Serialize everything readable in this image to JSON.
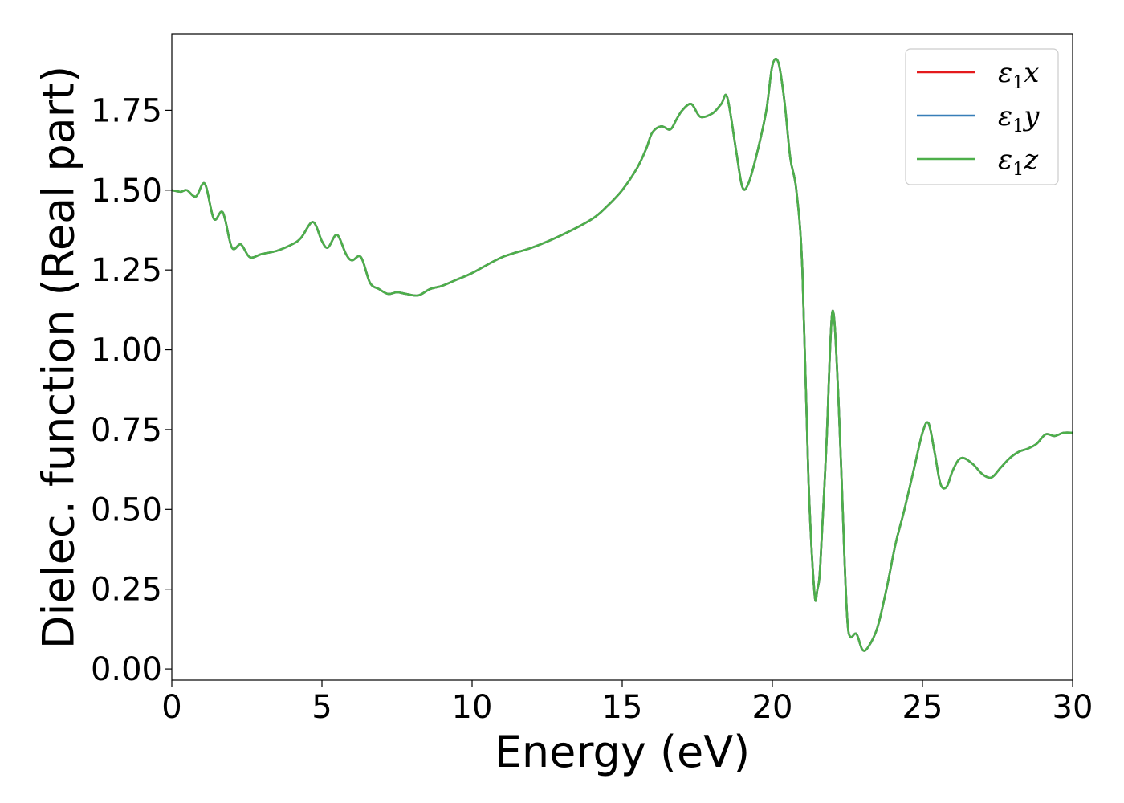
{
  "chart_data": {
    "type": "line",
    "xlabel": "Energy (eV)",
    "ylabel": "Dielec. function (Real part)",
    "xlim": [
      0,
      30
    ],
    "ylim": [
      -0.035,
      1.99
    ],
    "xticks": [
      0,
      5,
      10,
      15,
      20,
      25,
      30
    ],
    "xtick_labels": [
      "0",
      "5",
      "10",
      "15",
      "20",
      "25",
      "30"
    ],
    "yticks": [
      0.0,
      0.25,
      0.5,
      0.75,
      1.0,
      1.25,
      1.5,
      1.75
    ],
    "ytick_labels": [
      "0.00",
      "0.25",
      "0.50",
      "0.75",
      "1.00",
      "1.25",
      "1.50",
      "1.75"
    ],
    "grid": false,
    "legend_position": "top-right",
    "x": [
      0,
      0.3,
      0.5,
      0.8,
      1.1,
      1.4,
      1.7,
      2.0,
      2.3,
      2.6,
      3.0,
      3.5,
      4.0,
      4.3,
      4.7,
      5.0,
      5.2,
      5.5,
      5.8,
      6.0,
      6.3,
      6.6,
      6.9,
      7.2,
      7.5,
      7.8,
      8.2,
      8.6,
      9.0,
      9.5,
      10.0,
      11.0,
      12.0,
      13.0,
      14.0,
      14.5,
      15.0,
      15.5,
      15.8,
      16.0,
      16.3,
      16.6,
      16.8,
      17.0,
      17.3,
      17.6,
      18.0,
      18.3,
      18.5,
      18.8,
      19.0,
      19.2,
      19.5,
      19.8,
      20.0,
      20.2,
      20.4,
      20.6,
      20.8,
      21.0,
      21.2,
      21.4,
      21.5,
      21.6,
      21.8,
      22.0,
      22.2,
      22.4,
      22.5,
      22.6,
      22.8,
      23.0,
      23.2,
      23.5,
      23.8,
      24.1,
      24.4,
      24.7,
      25.0,
      25.2,
      25.4,
      25.6,
      25.8,
      26.0,
      26.2,
      26.4,
      26.7,
      27.0,
      27.3,
      27.6,
      27.9,
      28.2,
      28.5,
      28.8,
      29.1,
      29.4,
      29.7,
      30.0
    ],
    "series": [
      {
        "name": "ε₁x",
        "color": "#e41a1c",
        "values": [
          1.5,
          1.495,
          1.5,
          1.48,
          1.52,
          1.41,
          1.43,
          1.32,
          1.33,
          1.29,
          1.3,
          1.31,
          1.33,
          1.35,
          1.4,
          1.34,
          1.32,
          1.36,
          1.3,
          1.28,
          1.29,
          1.21,
          1.19,
          1.175,
          1.18,
          1.175,
          1.17,
          1.19,
          1.2,
          1.22,
          1.24,
          1.29,
          1.32,
          1.36,
          1.41,
          1.45,
          1.5,
          1.57,
          1.63,
          1.68,
          1.7,
          1.69,
          1.72,
          1.75,
          1.77,
          1.73,
          1.74,
          1.77,
          1.79,
          1.62,
          1.51,
          1.52,
          1.62,
          1.75,
          1.89,
          1.9,
          1.78,
          1.6,
          1.5,
          1.25,
          0.6,
          0.24,
          0.25,
          0.33,
          0.7,
          1.12,
          0.85,
          0.35,
          0.15,
          0.1,
          0.11,
          0.06,
          0.07,
          0.13,
          0.25,
          0.39,
          0.5,
          0.62,
          0.74,
          0.77,
          0.68,
          0.58,
          0.57,
          0.62,
          0.655,
          0.66,
          0.64,
          0.61,
          0.6,
          0.63,
          0.66,
          0.68,
          0.69,
          0.705,
          0.735,
          0.73,
          0.74,
          0.74
        ]
      },
      {
        "name": "ε₁y",
        "color": "#377eb8",
        "values": [
          1.5,
          1.495,
          1.5,
          1.48,
          1.52,
          1.41,
          1.43,
          1.32,
          1.33,
          1.29,
          1.3,
          1.31,
          1.33,
          1.35,
          1.4,
          1.34,
          1.32,
          1.36,
          1.3,
          1.28,
          1.29,
          1.21,
          1.19,
          1.175,
          1.18,
          1.175,
          1.17,
          1.19,
          1.2,
          1.22,
          1.24,
          1.29,
          1.32,
          1.36,
          1.41,
          1.45,
          1.5,
          1.57,
          1.63,
          1.68,
          1.7,
          1.69,
          1.72,
          1.75,
          1.77,
          1.73,
          1.74,
          1.77,
          1.79,
          1.62,
          1.51,
          1.52,
          1.62,
          1.75,
          1.89,
          1.9,
          1.78,
          1.6,
          1.5,
          1.25,
          0.6,
          0.24,
          0.25,
          0.33,
          0.7,
          1.12,
          0.85,
          0.35,
          0.15,
          0.1,
          0.11,
          0.06,
          0.07,
          0.13,
          0.25,
          0.39,
          0.5,
          0.62,
          0.74,
          0.77,
          0.68,
          0.58,
          0.57,
          0.62,
          0.655,
          0.66,
          0.64,
          0.61,
          0.6,
          0.63,
          0.66,
          0.68,
          0.69,
          0.705,
          0.735,
          0.73,
          0.74,
          0.74
        ]
      },
      {
        "name": "ε₁z",
        "color": "#4daf4a",
        "values": [
          1.5,
          1.495,
          1.5,
          1.48,
          1.52,
          1.41,
          1.43,
          1.32,
          1.33,
          1.29,
          1.3,
          1.31,
          1.33,
          1.35,
          1.4,
          1.34,
          1.32,
          1.36,
          1.3,
          1.28,
          1.29,
          1.21,
          1.19,
          1.175,
          1.18,
          1.175,
          1.17,
          1.19,
          1.2,
          1.22,
          1.24,
          1.29,
          1.32,
          1.36,
          1.41,
          1.45,
          1.5,
          1.57,
          1.63,
          1.68,
          1.7,
          1.69,
          1.72,
          1.75,
          1.77,
          1.73,
          1.74,
          1.77,
          1.79,
          1.62,
          1.51,
          1.52,
          1.62,
          1.75,
          1.89,
          1.9,
          1.78,
          1.6,
          1.5,
          1.25,
          0.6,
          0.24,
          0.25,
          0.33,
          0.7,
          1.12,
          0.85,
          0.35,
          0.15,
          0.1,
          0.11,
          0.06,
          0.07,
          0.13,
          0.25,
          0.39,
          0.5,
          0.62,
          0.74,
          0.77,
          0.68,
          0.58,
          0.57,
          0.62,
          0.655,
          0.66,
          0.64,
          0.61,
          0.6,
          0.63,
          0.66,
          0.68,
          0.69,
          0.705,
          0.735,
          0.73,
          0.74,
          0.74
        ]
      }
    ],
    "legend_labels": [
      {
        "symbol": "ε",
        "sub": "1",
        "axis": "x"
      },
      {
        "symbol": "ε",
        "sub": "1",
        "axis": "y"
      },
      {
        "symbol": "ε",
        "sub": "1",
        "axis": "z"
      }
    ]
  }
}
